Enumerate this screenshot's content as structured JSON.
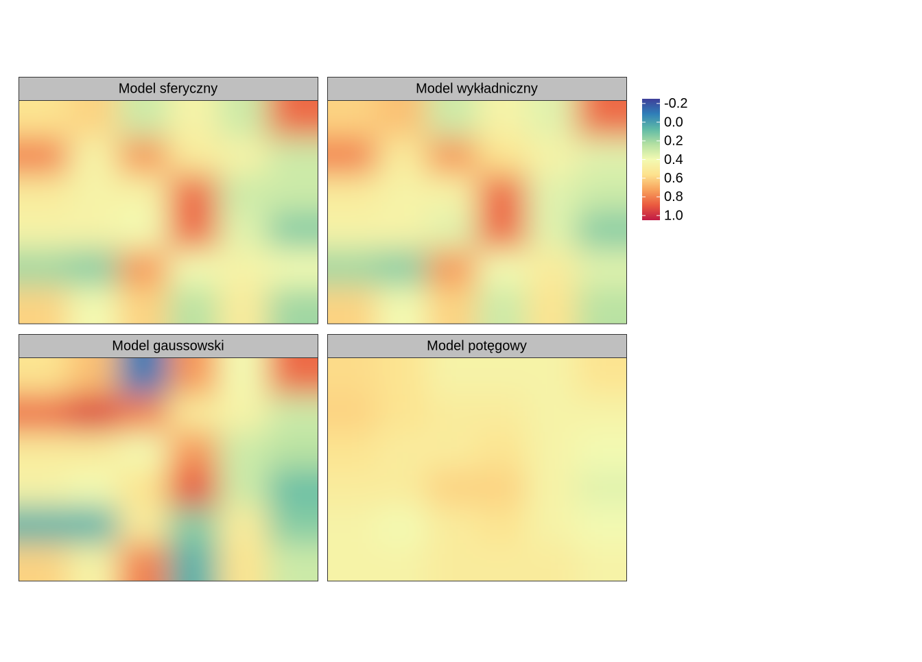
{
  "chart_data": {
    "type": "heatmap",
    "panels": [
      {
        "title": "Model sferyczny",
        "z": [
          [
            0.55,
            0.6,
            0.3,
            0.45,
            0.3,
            0.85
          ],
          [
            0.8,
            0.45,
            0.75,
            0.5,
            0.45,
            0.3
          ],
          [
            0.5,
            0.45,
            0.45,
            0.85,
            0.3,
            0.3
          ],
          [
            0.45,
            0.45,
            0.4,
            0.85,
            0.35,
            0.15
          ],
          [
            0.2,
            0.15,
            0.75,
            0.4,
            0.45,
            0.4
          ],
          [
            0.6,
            0.4,
            0.6,
            0.25,
            0.5,
            0.2
          ]
        ]
      },
      {
        "title": "Model wykładniczny",
        "z": [
          [
            0.6,
            0.65,
            0.3,
            0.45,
            0.35,
            0.85
          ],
          [
            0.8,
            0.5,
            0.75,
            0.55,
            0.45,
            0.35
          ],
          [
            0.5,
            0.45,
            0.45,
            0.85,
            0.35,
            0.3
          ],
          [
            0.45,
            0.45,
            0.35,
            0.85,
            0.35,
            0.15
          ],
          [
            0.2,
            0.15,
            0.75,
            0.4,
            0.5,
            0.35
          ],
          [
            0.6,
            0.4,
            0.6,
            0.3,
            0.55,
            0.25
          ]
        ]
      },
      {
        "title": "Model gaussowski",
        "z": [
          [
            0.55,
            0.65,
            -0.1,
            0.75,
            0.4,
            0.85
          ],
          [
            0.85,
            0.95,
            0.8,
            0.5,
            0.45,
            0.3
          ],
          [
            0.5,
            0.5,
            0.4,
            0.75,
            0.3,
            0.25
          ],
          [
            0.45,
            0.4,
            0.55,
            0.9,
            0.3,
            0.1
          ],
          [
            0.05,
            0.05,
            0.5,
            0.15,
            0.5,
            0.15
          ],
          [
            0.6,
            0.45,
            0.8,
            0.05,
            0.55,
            0.3
          ]
        ]
      },
      {
        "title": "Model potęgowy",
        "z": [
          [
            0.58,
            0.55,
            0.45,
            0.45,
            0.45,
            0.55
          ],
          [
            0.6,
            0.55,
            0.5,
            0.5,
            0.45,
            0.45
          ],
          [
            0.55,
            0.5,
            0.5,
            0.55,
            0.45,
            0.4
          ],
          [
            0.5,
            0.5,
            0.6,
            0.6,
            0.45,
            0.35
          ],
          [
            0.45,
            0.4,
            0.5,
            0.55,
            0.45,
            0.4
          ],
          [
            0.45,
            0.45,
            0.5,
            0.5,
            0.5,
            0.45
          ]
        ]
      }
    ],
    "clim": [
      -0.25,
      1.05
    ],
    "cticks": [
      -0.2,
      {
        "value": 0,
        "label": "0.0"
      },
      0.2,
      0.4,
      0.6,
      0.8,
      {
        "value": 1,
        "label": "1.0"
      }
    ],
    "colors": [
      "#3e3f99",
      "#2f7fb8",
      "#5fbaa6",
      "#b4e0a2",
      "#f3fab2",
      "#fde28e",
      "#f8a25c",
      "#ea5a3f",
      "#c01a45"
    ]
  }
}
